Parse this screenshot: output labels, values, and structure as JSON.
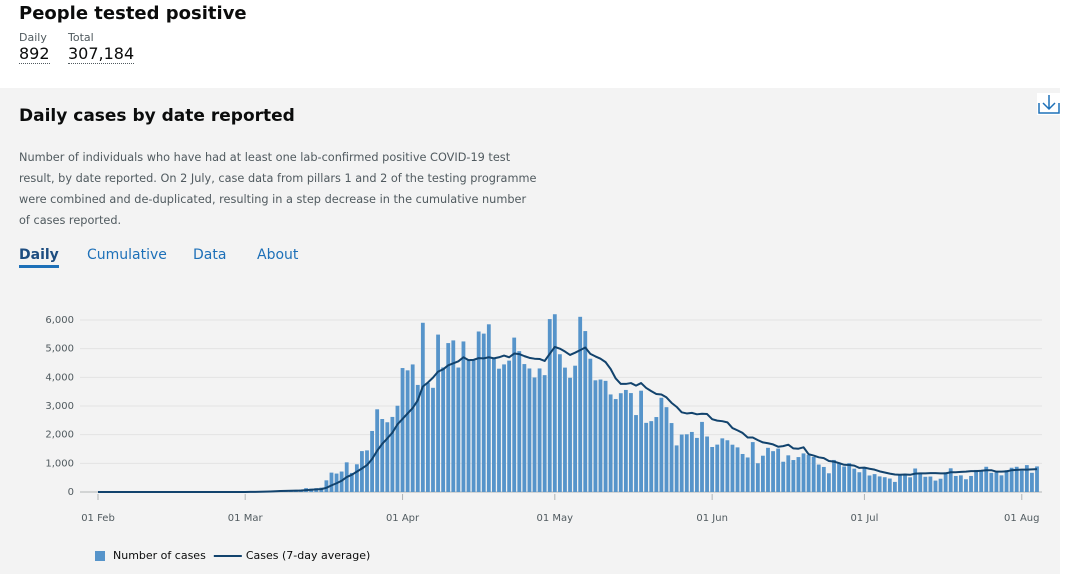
{
  "header": {
    "title": "People tested positive",
    "daily_label": "Daily",
    "total_label": "Total",
    "daily_value": "892",
    "total_value": "307,184"
  },
  "tabs": [
    "Daily",
    "Cumulative",
    "Data",
    "About"
  ],
  "chart_data": {
    "type": "bar",
    "title": "Daily cases by date reported",
    "description": "Number of individuals who have had at least one lab-confirmed positive COVID-19 test result, by date reported. On 2 July, case data from pillars 1 and 2 of the testing programme were combined and de-duplicated, resulting in a step decrease in the cumulative number of cases reported.",
    "categories": [
      "01 Feb",
      null,
      null,
      null,
      null,
      null,
      null,
      null,
      null,
      null,
      null,
      null,
      null,
      null,
      null,
      null,
      null,
      null,
      null,
      null,
      null,
      null,
      null,
      null,
      null,
      null,
      null,
      null,
      null,
      "01 Mar",
      null,
      null,
      null,
      null,
      null,
      null,
      null,
      null,
      null,
      null,
      null,
      null,
      null,
      null,
      null,
      null,
      null,
      null,
      null,
      null,
      null,
      null,
      null,
      null,
      null,
      null,
      null,
      null,
      null,
      null,
      "01 Apr",
      null,
      null,
      null,
      null,
      null,
      null,
      null,
      null,
      null,
      null,
      null,
      null,
      null,
      null,
      null,
      null,
      null,
      null,
      null,
      null,
      null,
      null,
      null,
      null,
      null,
      null,
      null,
      null,
      null,
      "01 May",
      null,
      null,
      null,
      null,
      null,
      null,
      null,
      null,
      null,
      null,
      null,
      null,
      null,
      null,
      null,
      null,
      null,
      null,
      null,
      null,
      null,
      null,
      null,
      null,
      null,
      null,
      null,
      null,
      null,
      null,
      "01 Jun",
      null,
      null,
      null,
      null,
      null,
      null,
      null,
      null,
      null,
      null,
      null,
      null,
      null,
      null,
      null,
      null,
      null,
      null,
      null,
      null,
      null,
      null,
      null,
      null,
      null,
      null,
      null,
      null,
      null,
      "01 Jul",
      null,
      null,
      null,
      null,
      null,
      null,
      null,
      null,
      null,
      null,
      null,
      null,
      null,
      null,
      null,
      null,
      null,
      null,
      null,
      null,
      null,
      null,
      null,
      null,
      null,
      null,
      null,
      null,
      null,
      null,
      "01 Aug",
      null,
      null,
      null
    ],
    "series": [
      {
        "name": "Number of cases",
        "type": "bar",
        "color": "#5694ca",
        "values": [
          0,
          0,
          0,
          1,
          0,
          0,
          0,
          0,
          1,
          0,
          3,
          1,
          0,
          0,
          1,
          0,
          0,
          0,
          0,
          0,
          0,
          0,
          0,
          0,
          0,
          0,
          4,
          6,
          3,
          13,
          4,
          11,
          34,
          30,
          48,
          43,
          67,
          48,
          46,
          50,
          83,
          134,
          117,
          133,
          152,
          407,
          676,
          643,
          714,
          1035,
          665,
          967,
          1427,
          1452,
          2129,
          2885,
          2546,
          2433,
          2619,
          3009,
          4324,
          4244,
          4450,
          3735,
          5903,
          3802,
          3634,
          5491,
          4344,
          5195,
          5288,
          4342,
          5252,
          4603,
          4617,
          5599,
          5525,
          5850,
          4676,
          4301,
          4451,
          4583,
          5386,
          4913,
          4463,
          4309,
          3996,
          4310,
          4076,
          6032,
          6201,
          4806,
          4339,
          3985,
          4406,
          6111,
          5614,
          4649,
          3896,
          3923,
          3877,
          3403,
          3242,
          3446,
          3560,
          3451,
          2684,
          3534,
          2412,
          2472,
          2615,
          3287,
          2959,
          2405,
          1625,
          2004,
          2013,
          2095,
          1887,
          2445,
          1936,
          1570,
          1653,
          1871,
          1805,
          1650,
          1557,
          1326,
          1205,
          1741,
          1003,
          1266,
          1541,
          1425,
          1514,
          1056,
          1279,
          1115,
          1218,
          1346,
          1295,
          1221,
          958,
          874,
          653,
          1118,
          1006,
          890,
          1006,
          814,
          689,
          829,
          576,
          624,
          544,
          516,
          470,
          352,
          581,
          630,
          512,
          820,
          650,
          530,
          538,
          398,
          463,
          687,
          827,
          560,
          580,
          445,
          560,
          769,
          767,
          880,
          668,
          685,
          581,
          763,
          846,
          880,
          744,
          938,
          670,
          892
        ]
      },
      {
        "name": "Cases (7-day average)",
        "type": "line",
        "color": "#12436d",
        "values": [
          0,
          0,
          0,
          0,
          0,
          0,
          0,
          0,
          0,
          0,
          0,
          1,
          1,
          1,
          1,
          1,
          1,
          1,
          1,
          1,
          0,
          0,
          0,
          0,
          0,
          0,
          1,
          1,
          2,
          2,
          3,
          4,
          8,
          12,
          19,
          26,
          34,
          40,
          45,
          50,
          54,
          67,
          78,
          90,
          100,
          147,
          231,
          305,
          392,
          520,
          600,
          710,
          820,
          940,
          1150,
          1440,
          1680,
          1870,
          2070,
          2360,
          2550,
          2740,
          2930,
          3200,
          3680,
          3820,
          3990,
          4200,
          4280,
          4420,
          4490,
          4560,
          4700,
          4600,
          4610,
          4670,
          4660,
          4700,
          4660,
          4700,
          4760,
          4700,
          4830,
          4810,
          4740,
          4680,
          4650,
          4640,
          4570,
          4820,
          5060,
          5000,
          4900,
          4780,
          4860,
          4950,
          5040,
          4820,
          4730,
          4650,
          4530,
          4290,
          3960,
          3770,
          3770,
          3800,
          3710,
          3800,
          3630,
          3520,
          3420,
          3400,
          3300,
          3110,
          2970,
          2780,
          2740,
          2760,
          2710,
          2730,
          2720,
          2540,
          2490,
          2470,
          2430,
          2230,
          2150,
          2060,
          1900,
          1900,
          1810,
          1730,
          1700,
          1660,
          1580,
          1600,
          1650,
          1520,
          1510,
          1560,
          1320,
          1270,
          1210,
          1180,
          1080,
          1060,
          1010,
          950,
          940,
          920,
          840,
          850,
          810,
          780,
          720,
          680,
          640,
          610,
          600,
          610,
          600,
          640,
          650,
          650,
          660,
          660,
          650,
          650,
          690,
          690,
          700,
          710,
          730,
          730,
          740,
          760,
          760,
          710,
          710,
          720,
          760,
          770,
          780,
          780,
          790,
          800
        ]
      }
    ],
    "ylim": [
      0,
      6500
    ],
    "yticks": [
      0,
      {
        "value": 1000,
        "label": "1,000"
      },
      {
        "value": 2000,
        "label": "2,000"
      },
      {
        "value": 3000,
        "label": "3,000"
      },
      {
        "value": 4000,
        "label": "4,000"
      },
      {
        "value": 5000,
        "label": "5,000"
      },
      {
        "value": 6000,
        "label": "6,000"
      }
    ],
    "grid": true,
    "legend": "bottom"
  }
}
